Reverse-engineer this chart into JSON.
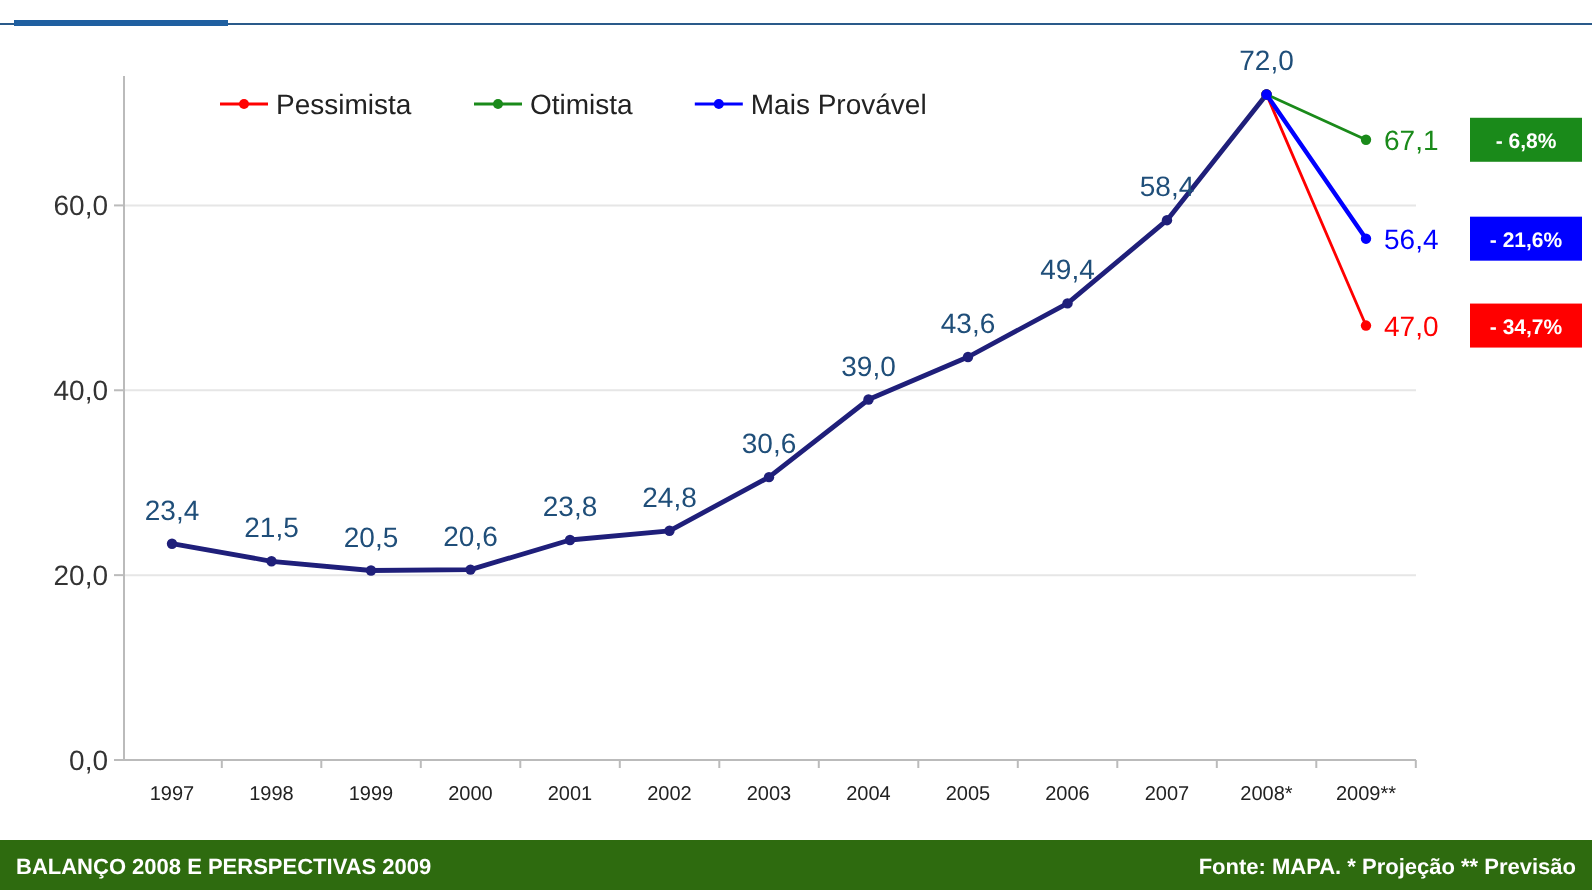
{
  "chart_data": {
    "type": "line",
    "title": "BALANÇO 2008 E PERSPECTIVAS 2009",
    "categories": [
      "1997",
      "1998",
      "1999",
      "2000",
      "2001",
      "2002",
      "2003",
      "2004",
      "2005",
      "2006",
      "2007",
      "2008*",
      "2009**"
    ],
    "series": [
      {
        "color": "#1f1f7a",
        "values": [
          23.4,
          21.5,
          20.5,
          20.6,
          23.8,
          24.8,
          30.6,
          39.0,
          43.6,
          49.4,
          58.4,
          72.0,
          null
        ],
        "value_labels": [
          "23,4",
          "21,5",
          "20,5",
          "20,6",
          "23,8",
          "24,8",
          "30,6",
          "39,0",
          "43,6",
          "49,4",
          "58,4",
          "72,0",
          null
        ]
      },
      {
        "name": "Pessimista",
        "color": "#ff0000",
        "values": [
          null,
          null,
          null,
          null,
          null,
          null,
          null,
          null,
          null,
          null,
          null,
          72.0,
          47.0
        ],
        "value_labels": [
          null,
          null,
          null,
          null,
          null,
          null,
          null,
          null,
          null,
          null,
          null,
          null,
          "47,0"
        ]
      },
      {
        "name": "Otimista",
        "color": "#1a8a1a",
        "values": [
          null,
          null,
          null,
          null,
          null,
          null,
          null,
          null,
          null,
          null,
          null,
          72.0,
          67.1
        ],
        "value_labels": [
          null,
          null,
          null,
          null,
          null,
          null,
          null,
          null,
          null,
          null,
          null,
          null,
          "67,1"
        ]
      },
      {
        "name": "Mais Provável",
        "color": "#0000ff",
        "values": [
          null,
          null,
          null,
          null,
          null,
          null,
          null,
          null,
          null,
          null,
          null,
          72.0,
          56.4
        ],
        "value_labels": [
          null,
          null,
          null,
          null,
          null,
          null,
          null,
          null,
          null,
          null,
          null,
          null,
          "56,4"
        ]
      }
    ],
    "ylim": [
      0,
      74
    ],
    "yticks": [
      {
        "value": 0,
        "label": "0,0"
      },
      {
        "value": 20,
        "label": "20,0"
      },
      {
        "value": 40,
        "label": "40,0"
      },
      {
        "value": 60,
        "label": "60,0"
      }
    ],
    "grid": "y",
    "legend": "top",
    "marker": "circle",
    "line_style": "solid",
    "annotations": [
      "- 6,8%",
      "- 21,6%",
      "- 34,7%",
      "Fonte: MAPA. * Projeção ** Previsão"
    ]
  }
}
